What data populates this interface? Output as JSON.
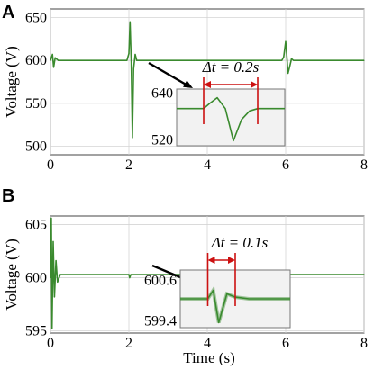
{
  "colors": {
    "trace": "#3a8a2e",
    "annotation": "#cc1111",
    "grid": "#d4d4d4",
    "inset_bg": "#f2f2f2",
    "arrow": "#000000"
  },
  "chart_data": [
    {
      "panel": "A",
      "type": "line",
      "ylabel": "Voltage  (V)",
      "xlabel": "",
      "xlim": [
        0,
        8
      ],
      "ylim": [
        490,
        660
      ],
      "xticks": [
        "0",
        "2",
        "4",
        "6",
        "8"
      ],
      "yticks": [
        "500",
        "550",
        "600",
        "650"
      ],
      "grid": true,
      "series": [
        {
          "x": [
            0,
            0.05,
            0.08,
            0.12,
            0.2,
            1.95,
            2.0,
            2.03,
            2.06,
            2.09,
            2.12,
            2.16,
            2.2,
            2.25,
            5.9,
            5.95,
            6.0,
            6.03,
            6.06,
            6.1,
            6.15,
            6.2,
            8.0
          ],
          "y": [
            600,
            607,
            592,
            603,
            600,
            600,
            608,
            645,
            598,
            510,
            590,
            607,
            600,
            600,
            600,
            604,
            622,
            605,
            585,
            592,
            602,
            600,
            600
          ]
        }
      ],
      "annotation": "Δt = 0.2s",
      "inset": {
        "yticks": [
          "640",
          "520"
        ],
        "ylim": [
          505,
          650
        ],
        "x": [
          1.9,
          2.0,
          2.02,
          2.05,
          2.08,
          2.11,
          2.14,
          2.17,
          2.2,
          2.25,
          2.3
        ],
        "y": [
          600,
          600,
          612,
          628,
          600,
          518,
          572,
          594,
          600,
          600,
          600
        ],
        "marker_x": [
          2.0,
          2.2
        ]
      }
    },
    {
      "panel": "B",
      "type": "line",
      "ylabel": "Voltage  (V)",
      "xlabel": "Time  (s)",
      "xlim": [
        0,
        8
      ],
      "ylim": [
        594.8,
        605.8
      ],
      "xticks": [
        "0",
        "2",
        "4",
        "6",
        "8"
      ],
      "yticks": [
        "595",
        "600",
        "605"
      ],
      "grid": true,
      "series": [
        {
          "x": [
            0,
            0.02,
            0.04,
            0.07,
            0.1,
            0.14,
            0.18,
            0.25,
            2.0,
            2.02,
            2.05,
            4.0,
            4.02,
            4.05,
            6.0,
            6.02,
            6.05,
            8.0
          ],
          "y": [
            600,
            605.6,
            595.2,
            603.4,
            598.2,
            601.6,
            599.6,
            600.3,
            600.3,
            600.0,
            600.3,
            600.3,
            600.0,
            600.3,
            600.3,
            600.0,
            600.3,
            600.3
          ]
        }
      ],
      "annotation": "Δt = 0.1s",
      "inset": {
        "yticks": [
          "600.6",
          "599.4"
        ],
        "ylim": [
          599.2,
          600.9
        ],
        "x": [
          1.9,
          1.95,
          2.0,
          2.02,
          2.04,
          2.07,
          2.1,
          2.15,
          2.2,
          2.3
        ],
        "y": [
          600.05,
          600.05,
          600.05,
          600.3,
          599.35,
          600.2,
          600.1,
          600.05,
          600.05,
          600.05
        ],
        "marker_x": [
          2.0,
          2.1
        ]
      }
    }
  ]
}
